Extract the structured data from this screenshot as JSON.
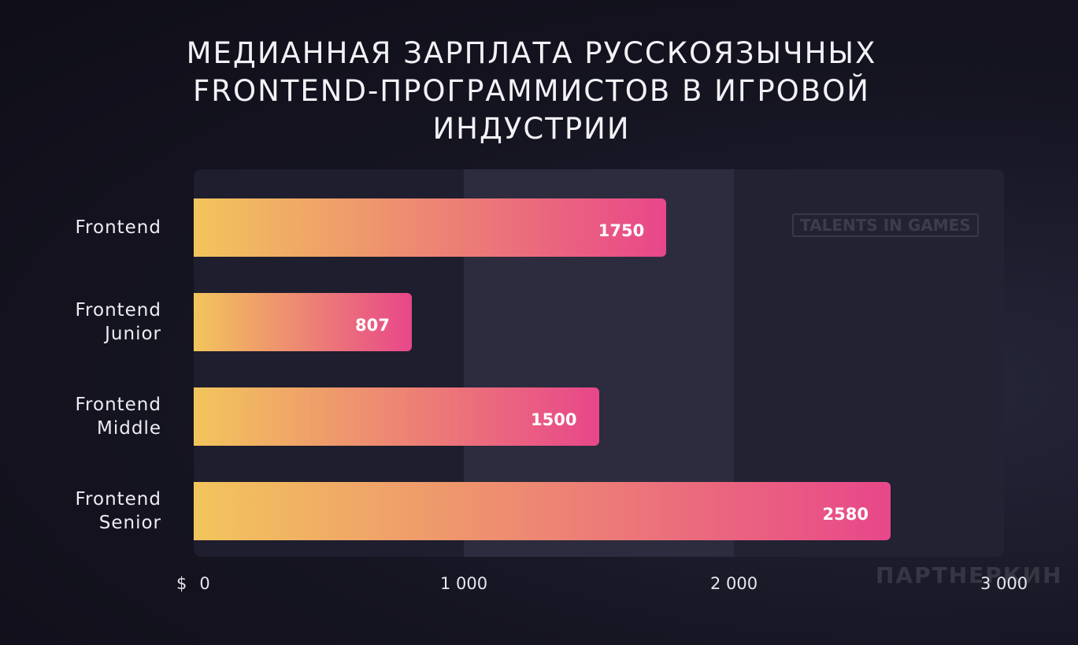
{
  "chart_data": {
    "type": "bar",
    "orientation": "horizontal",
    "title": "МЕДИАННАЯ ЗАРПЛАТА РУССКОЯЗЫЧНЫХ FRONTEND-ПРОГРАММИСТОВ В ИГРОВОЙ ИНДУСТРИИ",
    "categories": [
      "Frontend",
      "Frontend Junior",
      "Frontend Middle",
      "Frontend Senior"
    ],
    "values": [
      1750,
      807,
      1500,
      2580
    ],
    "colors": [
      "#f2c55c",
      "#e8478a"
    ],
    "x_unit": "$",
    "xlim": [
      0,
      3000
    ],
    "xticks": [
      0,
      {
        "value": 1000,
        "label": "1 000"
      },
      {
        "value": 2000,
        "label": "2 000"
      },
      {
        "value": 3000,
        "label": "3 000"
      }
    ],
    "watermarks": [
      "TALENTS IN GAMES",
      "ПАРТНЕРКИН"
    ]
  }
}
